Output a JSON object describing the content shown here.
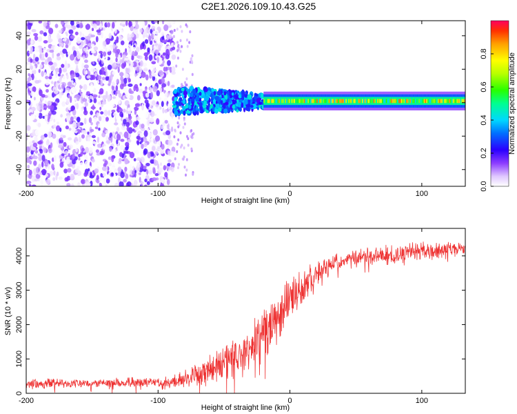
{
  "title": "C2E1.2026.109.10.43.G25",
  "chart_data": [
    {
      "type": "heatmap",
      "name": "spectrogram",
      "xlabel": "Height of straight line (km)",
      "ylabel": "Frequency (Hz)",
      "xlim": [
        -200,
        133
      ],
      "ylim": [
        -50,
        49
      ],
      "xticks": [
        -200,
        -100,
        0,
        100
      ],
      "yticks": [
        -40,
        -20,
        0,
        20,
        40
      ],
      "colorbar": {
        "label": "Normalized spectral amplitude",
        "range": [
          0,
          1
        ],
        "ticks": [
          0.0,
          0.2,
          0.4,
          0.6,
          0.8
        ]
      },
      "features": [
        {
          "x_range": [
            -200,
            -88
          ],
          "y_range": [
            -50,
            49
          ],
          "amplitude": [
            0.0,
            0.2
          ],
          "note": "scattered noise"
        },
        {
          "x_range": [
            -88,
            -20
          ],
          "y_range": [
            -7,
            10
          ],
          "amplitude": [
            0.2,
            0.45
          ],
          "note": "broad signal band"
        },
        {
          "x_range": [
            -20,
            133
          ],
          "y_center": 1,
          "y_halfwidth": 4,
          "amplitude": [
            0.4,
            0.9
          ],
          "note": "narrow carrier line"
        }
      ]
    },
    {
      "type": "line",
      "name": "snr",
      "xlabel": "Height of straight line (km)",
      "ylabel": "SNR (10 * v/v)",
      "xlim": [
        -200,
        133
      ],
      "ylim": [
        0,
        4800
      ],
      "xticks": [
        -200,
        -100,
        0,
        100
      ],
      "yticks": [
        0,
        1000,
        2000,
        3000,
        4000
      ],
      "color": "#ee3333",
      "series": [
        {
          "name": "SNR",
          "x": [
            -200,
            -180,
            -160,
            -140,
            -120,
            -100,
            -90,
            -80,
            -70,
            -60,
            -50,
            -40,
            -30,
            -20,
            -10,
            0,
            10,
            20,
            30,
            40,
            50,
            60,
            70,
            80,
            90,
            100,
            110,
            120,
            133
          ],
          "y": [
            250,
            300,
            280,
            300,
            320,
            300,
            330,
            400,
            550,
            700,
            900,
            1100,
            1400,
            1700,
            2200,
            2700,
            3100,
            3500,
            3750,
            3850,
            3950,
            4000,
            4050,
            4000,
            4100,
            4150,
            4150,
            4200,
            4200
          ],
          "noise_amplitude": [
            150,
            160,
            150,
            150,
            200,
            150,
            200,
            300,
            400,
            500,
            600,
            700,
            800,
            900,
            900,
            800,
            600,
            400,
            300,
            250,
            250,
            300,
            300,
            300,
            300,
            300,
            300,
            300,
            300
          ]
        }
      ]
    }
  ]
}
